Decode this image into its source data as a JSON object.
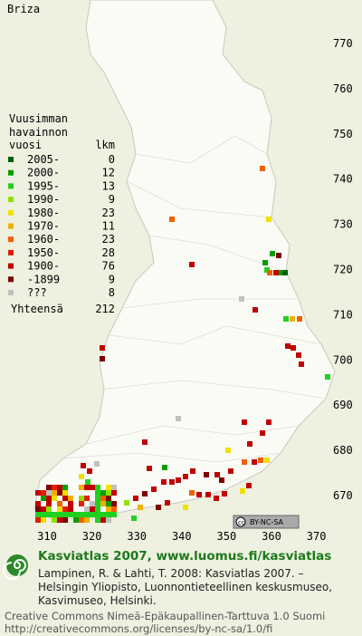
{
  "title": "Briza",
  "axis": {
    "y_labels": [
      770,
      760,
      750,
      740,
      730,
      720,
      710,
      700,
      690,
      680,
      670
    ],
    "x_labels": [
      310,
      320,
      330,
      340,
      350,
      360,
      370
    ]
  },
  "legend": {
    "heading": [
      "Vuusimman",
      "havainnon"
    ],
    "columns": [
      "vuosi",
      "lkm"
    ],
    "rows": [
      {
        "label": "2005-",
        "count": 0,
        "color": "#006000"
      },
      {
        "label": "2000-",
        "count": 12,
        "color": "#00a000"
      },
      {
        "label": "1995-",
        "count": 13,
        "color": "#20d020"
      },
      {
        "label": "1990-",
        "count": 9,
        "color": "#90e000"
      },
      {
        "label": "1980-",
        "count": 23,
        "color": "#f0e000"
      },
      {
        "label": "1970-",
        "count": 11,
        "color": "#f0b000"
      },
      {
        "label": "1960-",
        "count": 23,
        "color": "#f06000"
      },
      {
        "label": "1950-",
        "count": 28,
        "color": "#e02000"
      },
      {
        "label": "1900-",
        "count": 76,
        "color": "#c00000"
      },
      {
        "label": "-1899",
        "count": 9,
        "color": "#800000"
      },
      {
        "label": "???",
        "count": 8,
        "color": "#c0c0c0"
      }
    ],
    "total_label": "Yhteensä",
    "total": 212
  },
  "badge": "BY-NC-SA",
  "footer": {
    "headline": "Kasviatlas 2007, www.luomus.fi/kasviatlas",
    "citation": [
      "Lampinen, R. & Lahti, T. 2008: Kasviatlas 2007. –",
      "Helsingin Yliopisto, Luonnontieteellinen keskusmuseo,",
      "Kasvimuseo, Helsinki."
    ],
    "license": [
      "Creative Commons Nimeä-Epäkaupallinen-Tarttuva 1.0 Suomi",
      "http://creativecommons.org/licenses/by-nc-sa/1.0/fi"
    ]
  }
}
